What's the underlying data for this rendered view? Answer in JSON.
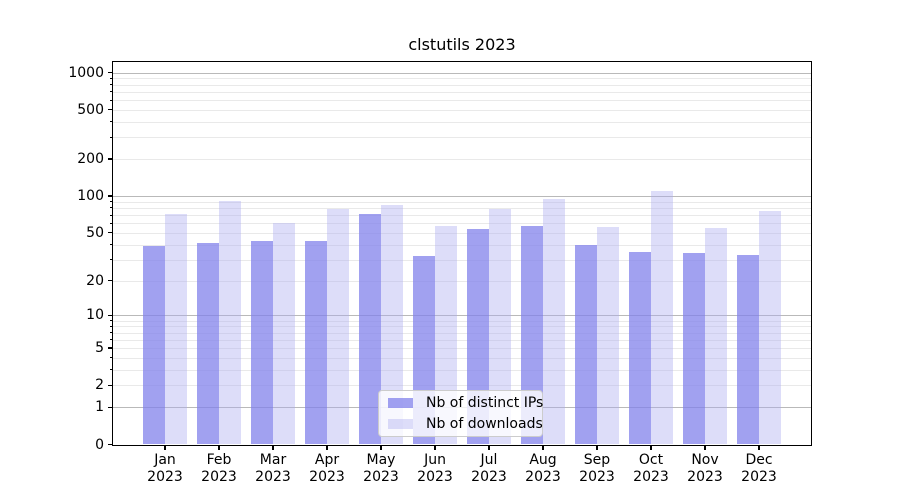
{
  "chart_data": {
    "type": "bar",
    "title": "clstutils 2023",
    "categories": [
      "Jan 2023",
      "Feb 2023",
      "Mar 2023",
      "Apr 2023",
      "May 2023",
      "Jun 2023",
      "Jul 2023",
      "Aug 2023",
      "Sep 2023",
      "Oct 2023",
      "Nov 2023",
      "Dec 2023"
    ],
    "month_labels": [
      "Jan",
      "Feb",
      "Mar",
      "Apr",
      "May",
      "Jun",
      "Jul",
      "Aug",
      "Sep",
      "Oct",
      "Nov",
      "Dec"
    ],
    "year_label": "2023",
    "series": [
      {
        "name": "Nb of distinct IPs",
        "color": "rgba(130,130,235,0.75)",
        "color_hex": "#a1a1f0",
        "values": [
          39,
          41,
          43,
          43,
          71,
          32,
          54,
          57,
          40,
          35,
          34,
          33
        ]
      },
      {
        "name": "Nb of downloads",
        "color": "rgba(170,170,240,0.4)",
        "color_hex": "#ddddf9",
        "values": [
          71,
          92,
          60,
          79,
          85,
          57,
          78,
          94,
          56,
          110,
          55,
          75
        ]
      }
    ],
    "xlabel": "",
    "ylabel": "",
    "yscale": "log1p",
    "ylim": [
      0,
      1230
    ],
    "yticks": [
      0,
      1,
      2,
      5,
      10,
      20,
      50,
      100,
      200,
      500,
      1000
    ],
    "major_gridlines": [
      1,
      10,
      100,
      1000
    ],
    "minor_gridlines": [
      2,
      3,
      4,
      5,
      6,
      7,
      8,
      9,
      20,
      30,
      40,
      50,
      60,
      70,
      80,
      90,
      200,
      300,
      400,
      500,
      600,
      700,
      800,
      900
    ],
    "grid": true,
    "legend_position": "lower center"
  },
  "colors": {
    "background": "#ffffff",
    "spine": "#000000",
    "text": "#000000",
    "major_grid": "#b9b9b9",
    "minor_grid": "#e9e9e9",
    "legend_border": "#cccccc",
    "legend_bg": "rgba(255,255,255,0.8)"
  }
}
